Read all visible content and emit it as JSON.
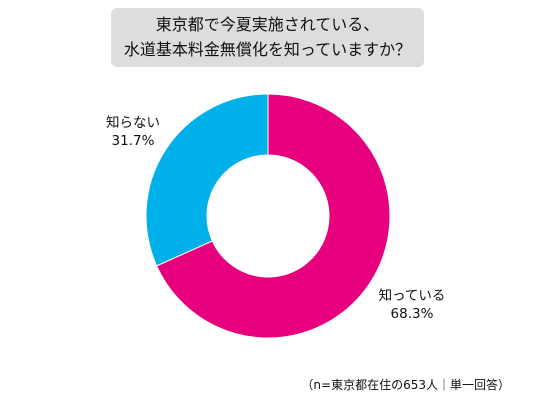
{
  "header": {
    "title_line1": "東京都で今夏実施されている、",
    "title_line2": "水道基本料金無償化を知っていますか？"
  },
  "chart_data": {
    "type": "pie",
    "donut": true,
    "title": "東京都で今夏実施されている、水道基本料金無償化を知っていますか？",
    "categories": [
      "知っている",
      "知らない"
    ],
    "values": [
      68.3,
      31.7
    ],
    "value_labels": [
      "68.3%",
      "31.7%"
    ],
    "colors": [
      "#e6007e",
      "#00b0e8"
    ],
    "legend": "none"
  },
  "footnote": "（n=東京都在住の653人｜単一回答）"
}
